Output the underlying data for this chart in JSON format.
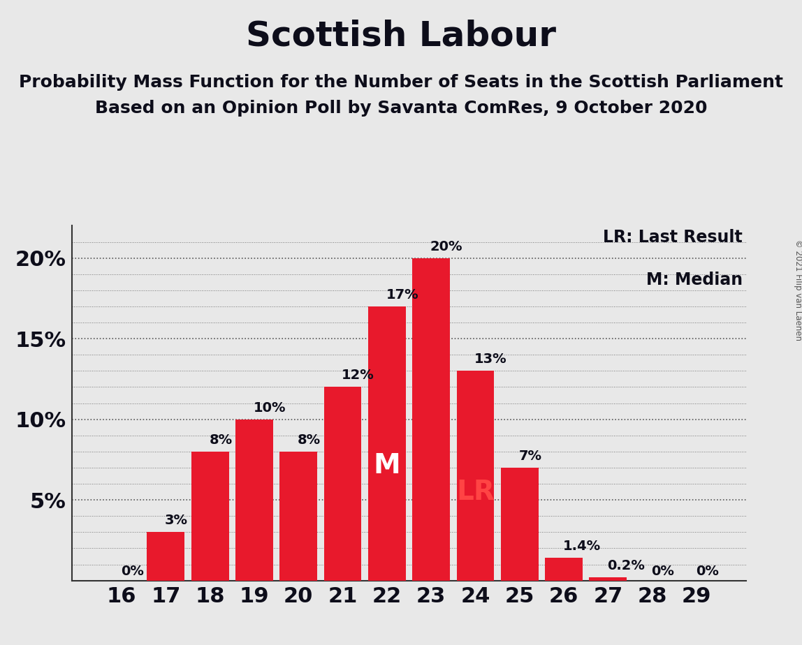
{
  "title": "Scottish Labour",
  "subtitle1": "Probability Mass Function for the Number of Seats in the Scottish Parliament",
  "subtitle2": "Based on an Opinion Poll by Savanta ComRes, 9 October 2020",
  "copyright": "© 2021 Filip van Laenen",
  "categories": [
    16,
    17,
    18,
    19,
    20,
    21,
    22,
    23,
    24,
    25,
    26,
    27,
    28,
    29
  ],
  "values": [
    0.0,
    3.0,
    8.0,
    10.0,
    8.0,
    12.0,
    17.0,
    20.0,
    13.0,
    7.0,
    1.4,
    0.2,
    0.0,
    0.0
  ],
  "labels": [
    "0%",
    "3%",
    "8%",
    "10%",
    "8%",
    "12%",
    "17%",
    "20%",
    "13%",
    "7%",
    "1.4%",
    "0.2%",
    "0%",
    "0%"
  ],
  "bar_color": "#E8192C",
  "background_color": "#E8E8E8",
  "median_seat": 22,
  "last_result_seat": 24,
  "legend_lr": "LR: Last Result",
  "legend_m": "M: Median",
  "yticks": [
    5,
    10,
    15,
    20
  ],
  "ylim": [
    0,
    22
  ],
  "title_fontsize": 36,
  "subtitle_fontsize": 18,
  "label_fontsize": 14,
  "axis_fontsize": 22,
  "legend_fontsize": 17,
  "median_label_fontsize": 28,
  "lr_label_fontsize": 28
}
